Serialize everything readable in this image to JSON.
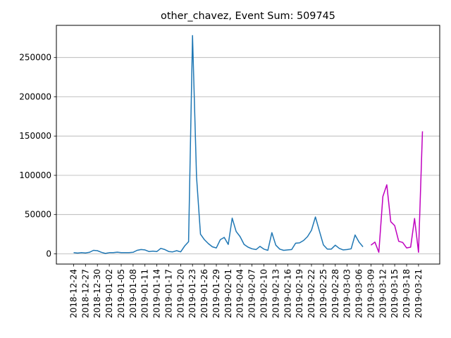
{
  "chart_data": {
    "type": "line",
    "title": "other_chavez, Event Sum: 509745",
    "xlabel": "",
    "ylabel": "",
    "ylim": [
      -13000,
      291000
    ],
    "yticks": [
      0,
      50000,
      100000,
      150000,
      200000,
      250000
    ],
    "ytick_labels": [
      "0",
      "50000",
      "100000",
      "150000",
      "200000",
      "250000"
    ],
    "grid": "horizontal",
    "x_start": "2018-12-24",
    "xticks": [
      "2018-12-24",
      "2018-12-27",
      "2018-12-30",
      "2019-01-02",
      "2019-01-05",
      "2019-01-08",
      "2019-01-11",
      "2019-01-14",
      "2019-01-17",
      "2019-01-20",
      "2019-01-23",
      "2019-01-26",
      "2019-01-29",
      "2019-02-01",
      "2019-02-04",
      "2019-02-07",
      "2019-02-10",
      "2019-02-13",
      "2019-02-16",
      "2019-02-19",
      "2019-02-22",
      "2019-02-25",
      "2019-02-28",
      "2019-03-03",
      "2019-03-06",
      "2019-03-09",
      "2019-03-12",
      "2019-03-15",
      "2019-03-18",
      "2019-03-21"
    ],
    "series": [
      {
        "color": "#1f77b4",
        "x": [
          "2018-12-24",
          "2018-12-25",
          "2018-12-26",
          "2018-12-27",
          "2018-12-28",
          "2018-12-29",
          "2018-12-30",
          "2018-12-31",
          "2019-01-01",
          "2019-01-02",
          "2019-01-03",
          "2019-01-04",
          "2019-01-05",
          "2019-01-06",
          "2019-01-07",
          "2019-01-08",
          "2019-01-09",
          "2019-01-10",
          "2019-01-11",
          "2019-01-12",
          "2019-01-13",
          "2019-01-14",
          "2019-01-15",
          "2019-01-16",
          "2019-01-17",
          "2019-01-18",
          "2019-01-19",
          "2019-01-20",
          "2019-01-21",
          "2019-01-22",
          "2019-01-23",
          "2019-01-24",
          "2019-01-25",
          "2019-01-26",
          "2019-01-27",
          "2019-01-28",
          "2019-01-29",
          "2019-01-30",
          "2019-01-31",
          "2019-02-01",
          "2019-02-02",
          "2019-02-03",
          "2019-02-04",
          "2019-02-05",
          "2019-02-06",
          "2019-02-07",
          "2019-02-08",
          "2019-02-09",
          "2019-02-10",
          "2019-02-11",
          "2019-02-12",
          "2019-02-13",
          "2019-02-14",
          "2019-02-15",
          "2019-02-16",
          "2019-02-17",
          "2019-02-18",
          "2019-02-19",
          "2019-02-20",
          "2019-02-21",
          "2019-02-22",
          "2019-02-23",
          "2019-02-24",
          "2019-02-25",
          "2019-02-26",
          "2019-02-27",
          "2019-02-28",
          "2019-03-01",
          "2019-03-02",
          "2019-03-03",
          "2019-03-04",
          "2019-03-05",
          "2019-03-06",
          "2019-03-07"
        ],
        "values": [
          1500,
          1000,
          1500,
          1200,
          2000,
          4500,
          4000,
          2000,
          500,
          1500,
          1500,
          2200,
          1500,
          1500,
          1500,
          2000,
          4500,
          5500,
          5000,
          3000,
          3500,
          3000,
          7000,
          5500,
          3000,
          2500,
          4000,
          2500,
          10000,
          15500,
          278000,
          98000,
          25000,
          18000,
          13000,
          9000,
          7500,
          18000,
          21000,
          12000,
          45500,
          28500,
          22000,
          12000,
          8500,
          6500,
          5500,
          9500,
          6000,
          4500,
          27000,
          11000,
          6000,
          4500,
          5000,
          5500,
          13500,
          14000,
          17000,
          22000,
          30000,
          47000,
          29000,
          11500,
          6000,
          6000,
          11000,
          7000,
          5000,
          5500,
          6500,
          24000,
          15000,
          9000
        ]
      },
      {
        "color": "#bf00bf",
        "x": [
          "2019-03-09",
          "2019-03-10",
          "2019-03-11",
          "2019-03-12",
          "2019-03-13",
          "2019-03-14",
          "2019-03-15",
          "2019-03-16",
          "2019-03-17",
          "2019-03-18",
          "2019-03-19",
          "2019-03-20",
          "2019-03-21",
          "2019-03-22"
        ],
        "values": [
          11000,
          15000,
          2000,
          73000,
          88000,
          41000,
          36000,
          16000,
          14500,
          7500,
          8500,
          45000,
          2000,
          156000
        ]
      }
    ]
  }
}
